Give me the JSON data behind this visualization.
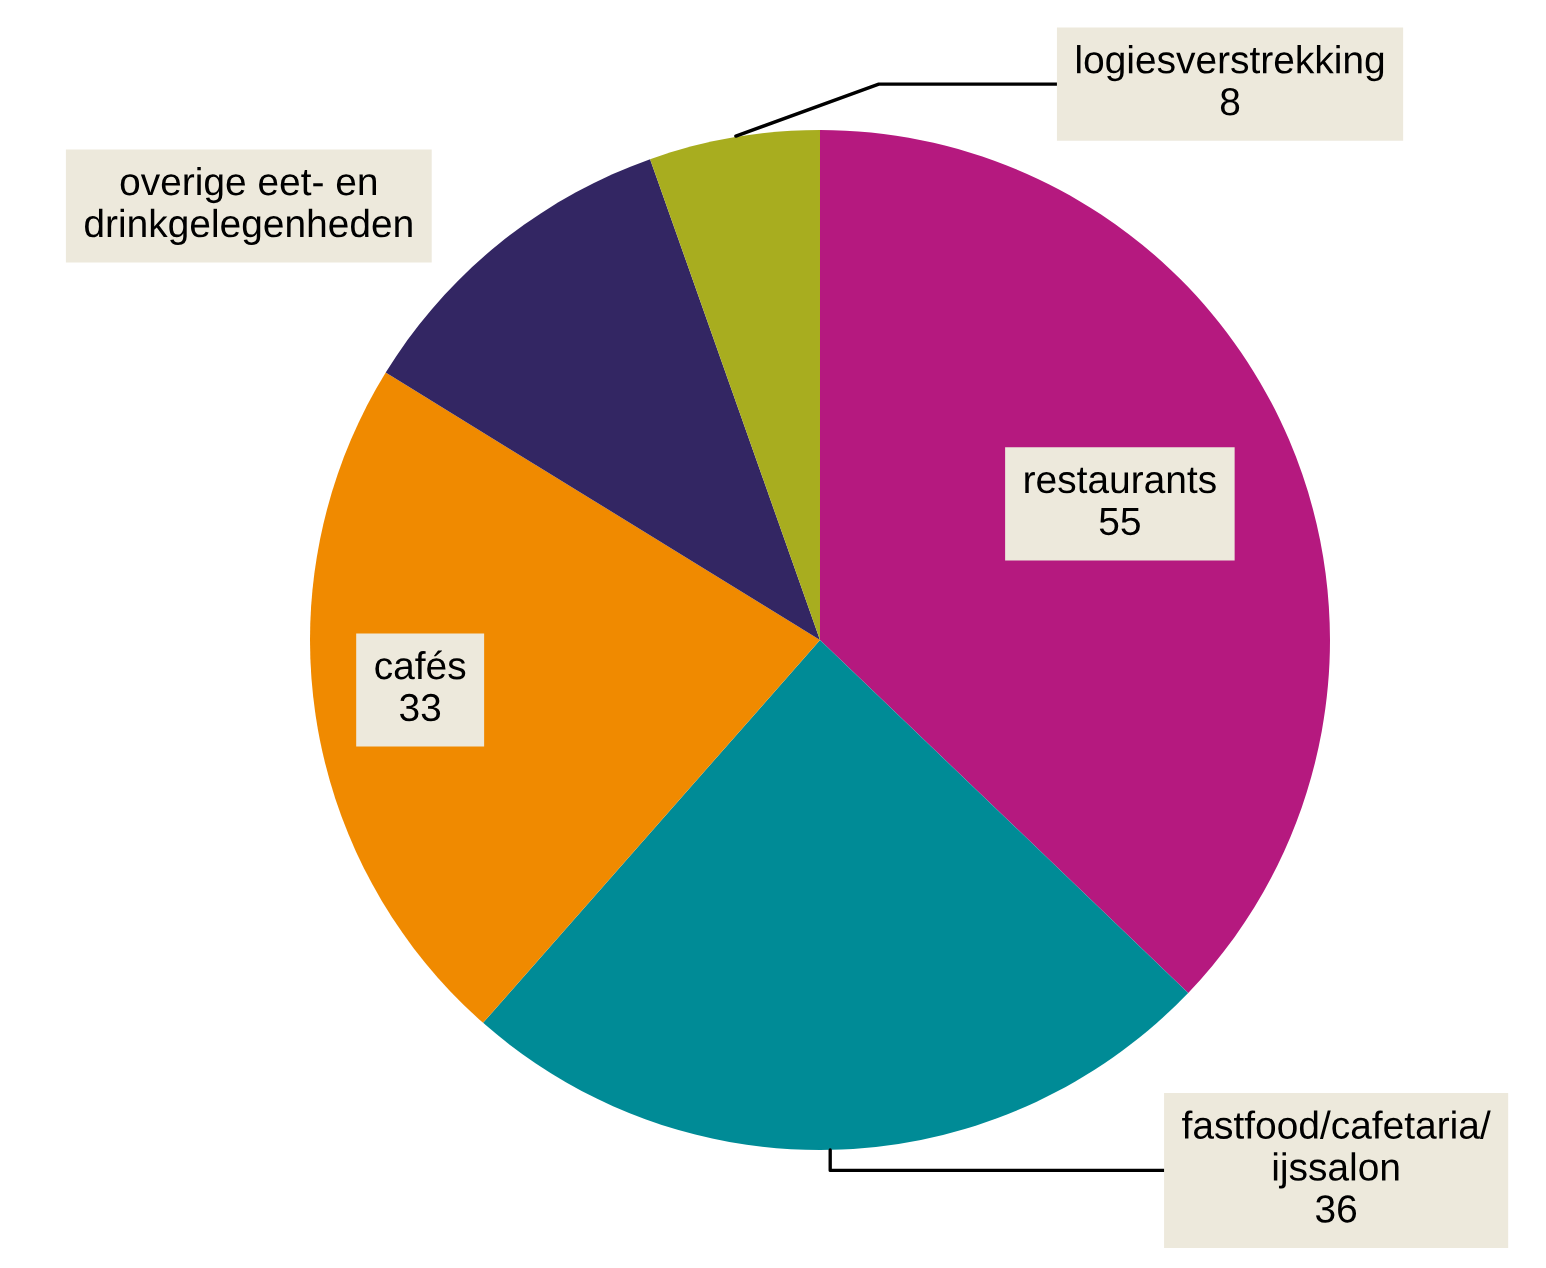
{
  "chart_data": {
    "type": "pie",
    "categories": [
      "restaurants",
      "fastfood/cafetaria/\nijssalon",
      "cafés",
      "overige eet- en\ndrinkgelegenheden",
      "logiesverstrekking"
    ],
    "values": [
      55,
      36,
      33,
      16,
      8
    ],
    "value_labels": [
      "55",
      "36",
      "33",
      null,
      "8"
    ],
    "colors": [
      "#b5197f",
      "#008b96",
      "#f08a00",
      "#332663",
      "#a8ad1f"
    ],
    "legend": false
  }
}
